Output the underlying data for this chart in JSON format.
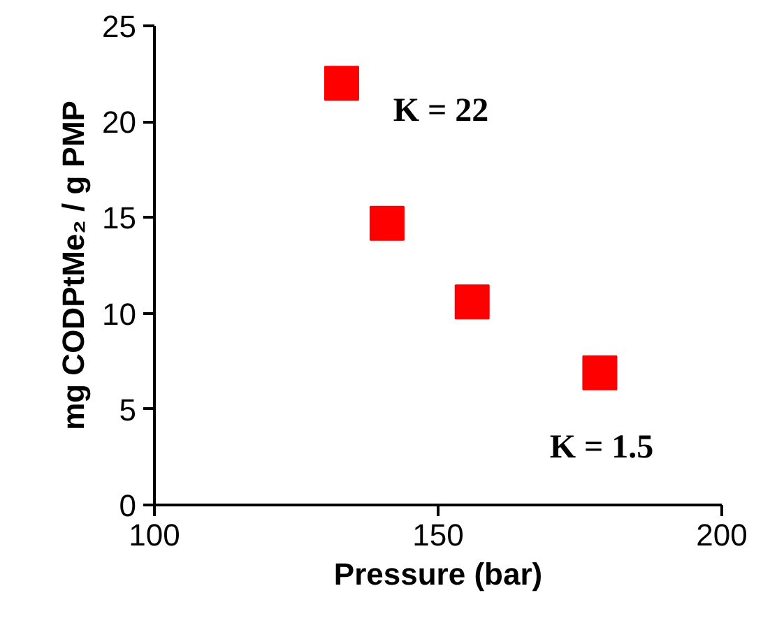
{
  "chart_data": {
    "type": "scatter",
    "xlabel": "Pressure (bar)",
    "ylabel": "mg CODPtMe₂ / g PMP",
    "x": [
      133,
      141,
      156,
      178.5
    ],
    "series": [
      {
        "color": "#ff0000",
        "values": [
          22,
          14.7,
          10.6,
          6.9
        ]
      }
    ],
    "marker": "square",
    "grid": false,
    "xlim": [
      100,
      200
    ],
    "xticks": [
      100,
      150,
      200
    ],
    "ylim": [
      0,
      25
    ],
    "yticks": [
      0,
      5,
      10,
      15,
      20,
      25
    ],
    "annotations": [
      "K = 22",
      "K = 1.5"
    ]
  }
}
